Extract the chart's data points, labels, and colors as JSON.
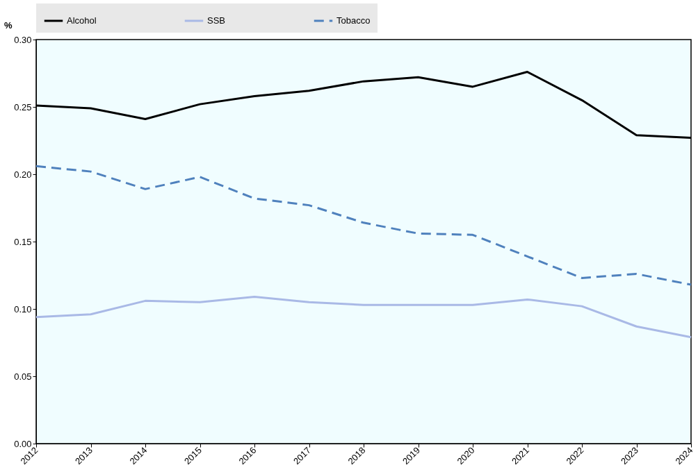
{
  "chart_data": {
    "type": "line",
    "ylabel": "%",
    "categories": [
      "2012",
      "2013",
      "2014",
      "2015",
      "2016",
      "2017",
      "2018",
      "2019",
      "2020",
      "2021",
      "2022",
      "2023",
      "2024"
    ],
    "series": [
      {
        "name": "Alcohol",
        "color": "#000000",
        "line_style": "solid",
        "values": [
          0.251,
          0.249,
          0.241,
          0.252,
          0.258,
          0.262,
          0.269,
          0.272,
          0.265,
          0.276,
          0.255,
          0.229,
          0.227
        ]
      },
      {
        "name": "SSB",
        "color": "#a9b9e6",
        "line_style": "solid",
        "values": [
          0.094,
          0.096,
          0.106,
          0.105,
          0.109,
          0.105,
          0.103,
          0.103,
          0.103,
          0.107,
          0.102,
          0.087,
          0.079
        ]
      },
      {
        "name": "Tobacco",
        "color": "#4f81bd",
        "line_style": "dashed",
        "values": [
          0.206,
          0.202,
          0.189,
          0.198,
          0.182,
          0.177,
          0.164,
          0.156,
          0.155,
          0.139,
          0.123,
          0.126,
          0.118
        ]
      }
    ],
    "ylim": [
      0,
      0.3
    ],
    "yticks": [
      {
        "value": 0,
        "label": "0.00"
      },
      0.05,
      {
        "value": 0.1,
        "label": "0.10"
      },
      0.15,
      {
        "value": 0.2,
        "label": "0.20"
      },
      0.25,
      {
        "value": 0.3,
        "label": "0.30"
      }
    ],
    "grid": false,
    "legend": "top",
    "marker": "none"
  }
}
